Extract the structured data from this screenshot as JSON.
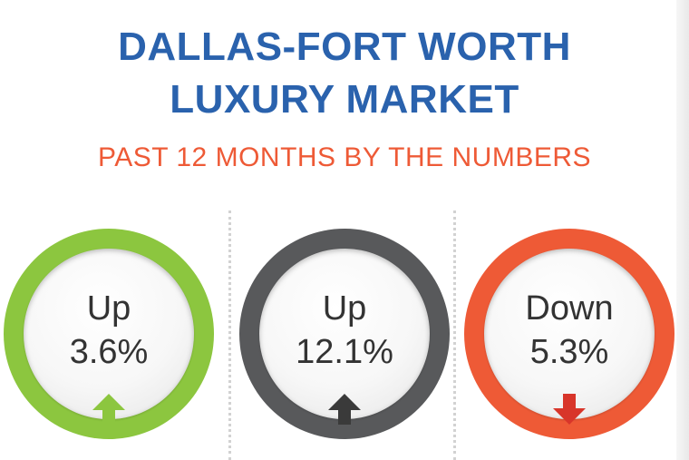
{
  "header": {
    "title_line1": "DALLAS-FORT WORTH",
    "title_line2": "LUXURY MARKET",
    "subtitle": "PAST 12 MONTHS BY THE NUMBERS"
  },
  "stats": [
    {
      "direction_label": "Up",
      "value": "3.6%",
      "ring_color": "#8cc63f",
      "arrow_color": "#8cc63f",
      "arrow": "up-arrow-icon"
    },
    {
      "direction_label": "Up",
      "value": "12.1%",
      "ring_color": "#58595b",
      "arrow_color": "#3a3a3a",
      "arrow": "up-arrow-icon"
    },
    {
      "direction_label": "Down",
      "value": "5.3%",
      "ring_color": "#ee5a36",
      "arrow_color": "#d8352a",
      "arrow": "down-arrow-icon"
    }
  ]
}
